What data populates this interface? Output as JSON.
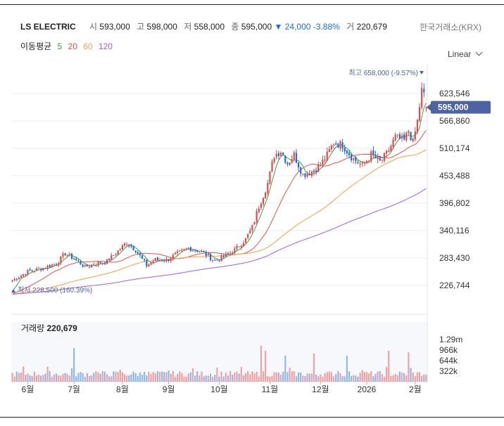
{
  "header": {
    "name": "LS ELECTRIC",
    "open_label": "시",
    "open": "593,000",
    "high_label": "고",
    "high": "598,000",
    "low_label": "저",
    "low": "558,000",
    "close_label": "종",
    "close": "595,000",
    "change_arrow": "▼",
    "change": "24,000",
    "change_pct": "-3.88%",
    "volume_label": "거",
    "volume": "220,679",
    "exchange": "한국거래소(KRX)",
    "down_color": "#1c6fd6"
  },
  "ma": {
    "label": "이동평균",
    "periods": [
      {
        "period": "5",
        "color": "#3aa14a"
      },
      {
        "period": "20",
        "color": "#e5554f"
      },
      {
        "period": "60",
        "color": "#f0a050"
      },
      {
        "period": "120",
        "color": "#a060e0"
      }
    ]
  },
  "scale_label": "Linear",
  "chart_data": {
    "type": "candlestick",
    "price_axis": {
      "ticks": [
        623546,
        566860,
        510174,
        453488,
        396802,
        340116,
        283430,
        226744
      ],
      "tick_labels": [
        "623,546",
        "566,860",
        "510,174",
        "453,488",
        "396,802",
        "340,116",
        "283,430",
        "226,744"
      ],
      "current_label": "595,000",
      "current": 595000
    },
    "x_axis": {
      "labels": [
        "6월",
        "7월",
        "8월",
        "9월",
        "10월",
        "11월",
        "12월",
        "2026",
        "2월"
      ],
      "label_index": [
        7,
        28,
        50,
        71,
        94,
        117,
        140,
        161,
        183
      ]
    },
    "annotations": {
      "high_text": "최고 658,000 (-9.57%)",
      "high_value": 658000,
      "low_text": "최저 228,500 (160.39%)",
      "low_value": 228500
    },
    "up_color": "#e04a4a",
    "down_color": "#1c6fd6",
    "price_waypoints": [
      [
        0,
        237000
      ],
      [
        7,
        255000
      ],
      [
        14,
        263000
      ],
      [
        20,
        272000
      ],
      [
        24,
        293000
      ],
      [
        28,
        282000
      ],
      [
        33,
        265000
      ],
      [
        38,
        272000
      ],
      [
        43,
        277000
      ],
      [
        48,
        298000
      ],
      [
        52,
        316000
      ],
      [
        56,
        300000
      ],
      [
        61,
        268000
      ],
      [
        65,
        280000
      ],
      [
        70,
        279000
      ],
      [
        74,
        290000
      ],
      [
        80,
        304000
      ],
      [
        86,
        296000
      ],
      [
        92,
        278000
      ],
      [
        96,
        286000
      ],
      [
        101,
        300000
      ],
      [
        106,
        322000
      ],
      [
        109,
        347000
      ],
      [
        112,
        390000
      ],
      [
        116,
        438000
      ],
      [
        119,
        496000
      ],
      [
        122,
        505000
      ],
      [
        125,
        480000
      ],
      [
        128,
        497000
      ],
      [
        132,
        456000
      ],
      [
        136,
        463000
      ],
      [
        140,
        476000
      ],
      [
        143,
        496000
      ],
      [
        146,
        522000
      ],
      [
        150,
        517000
      ],
      [
        155,
        488000
      ],
      [
        159,
        474000
      ],
      [
        163,
        497000
      ],
      [
        167,
        482000
      ],
      [
        170,
        498000
      ],
      [
        174,
        533000
      ],
      [
        178,
        526000
      ],
      [
        180,
        547000
      ],
      [
        182,
        522000
      ],
      [
        184,
        566000
      ],
      [
        186,
        630000
      ],
      [
        187,
        620000
      ],
      [
        188,
        595000
      ]
    ],
    "volume": {
      "label": "거래량",
      "value": "220,679",
      "tick_labels": [
        "1.29m",
        "966k",
        "644k",
        "322k"
      ],
      "ticks": [
        1290000,
        966000,
        644000,
        322000
      ]
    }
  }
}
